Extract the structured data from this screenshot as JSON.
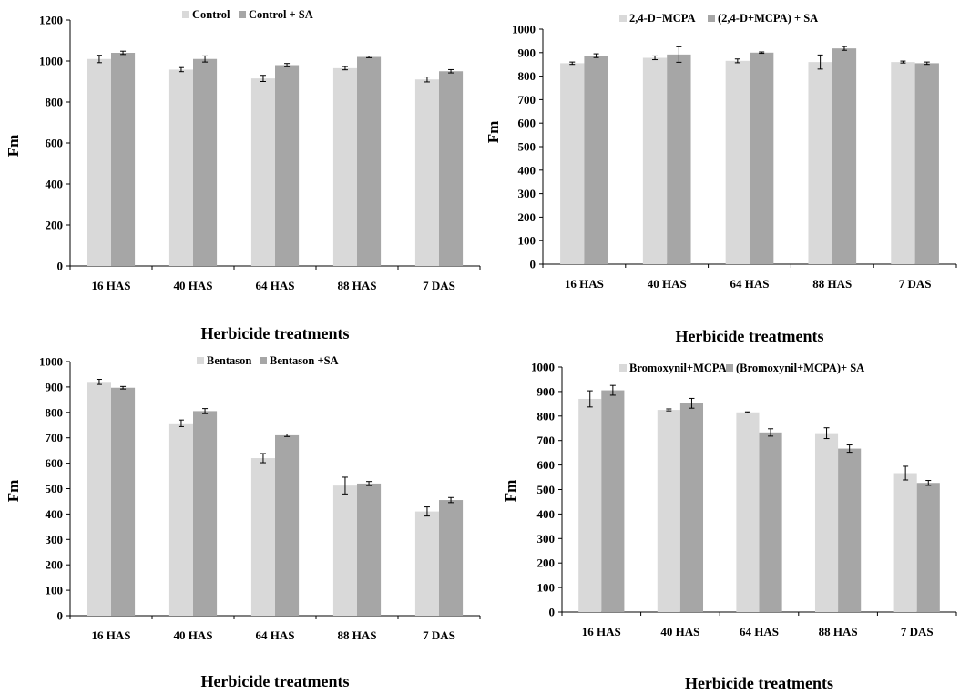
{
  "colors": {
    "series1": "#d9d9d9",
    "series2": "#a6a6a6",
    "axis": "#000000"
  },
  "chart_data": [
    {
      "type": "bar",
      "categories": [
        "16 HAS",
        "40 HAS",
        "64 HAS",
        "88 HAS",
        "7 DAS"
      ],
      "series": [
        {
          "name": "Control",
          "values": [
            1010,
            958,
            915,
            965,
            910
          ],
          "errors": [
            18,
            10,
            15,
            8,
            12
          ]
        },
        {
          "name": "Control + SA",
          "values": [
            1040,
            1010,
            980,
            1020,
            950
          ],
          "errors": [
            8,
            15,
            8,
            4,
            8
          ]
        }
      ],
      "xlabel": "Herbicide treatments",
      "ylabel": "Fm",
      "ylim": [
        0,
        1200
      ],
      "yticks": [
        "0",
        "200",
        "400",
        "600",
        "800",
        "1000",
        "1200"
      ],
      "grid": false,
      "legend": "top"
    },
    {
      "type": "bar",
      "categories": [
        "16 HAS",
        "40 HAS",
        "64 HAS",
        "88 HAS",
        "7 DAS"
      ],
      "series": [
        {
          "name": "2,4-D+MCPA",
          "values": [
            855,
            878,
            865,
            860,
            860
          ],
          "errors": [
            5,
            8,
            8,
            30,
            4
          ]
        },
        {
          "name": "(2,4-D+MCPA)  + SA",
          "values": [
            887,
            892,
            900,
            918,
            855
          ],
          "errors": [
            8,
            33,
            3,
            8,
            5
          ]
        }
      ],
      "xlabel": "Herbicide treatments",
      "ylabel": "Fm",
      "ylim": [
        0,
        1000
      ],
      "yticks": [
        "0",
        "100",
        "200",
        "300",
        "400",
        "500",
        "600",
        "700",
        "800",
        "900",
        "1000"
      ],
      "grid": false,
      "legend": "top"
    },
    {
      "type": "bar",
      "categories": [
        "16 HAS",
        "40 HAS",
        "64 HAS",
        "88 HAS",
        "7 DAS"
      ],
      "series": [
        {
          "name": "Bentason",
          "values": [
            920,
            757,
            620,
            512,
            410
          ],
          "errors": [
            10,
            13,
            18,
            33,
            18
          ]
        },
        {
          "name": "Bentason +SA",
          "values": [
            897,
            805,
            710,
            520,
            455
          ],
          "errors": [
            5,
            10,
            5,
            8,
            10
          ]
        }
      ],
      "xlabel": "Herbicide treatments",
      "ylabel": "Fm",
      "ylim": [
        0,
        1000
      ],
      "yticks": [
        "0",
        "100",
        "200",
        "300",
        "400",
        "500",
        "600",
        "700",
        "800",
        "900",
        "1000"
      ],
      "grid": false,
      "legend": "top"
    },
    {
      "type": "bar",
      "categories": [
        "16 HAS",
        "40 HAS",
        "64 HAS",
        "88 HAS",
        "7 DAS"
      ],
      "series": [
        {
          "name": "Bromoxynil+MCPA",
          "values": [
            870,
            825,
            815,
            730,
            567
          ],
          "errors": [
            33,
            4,
            2,
            22,
            28
          ]
        },
        {
          "name": "(Bromoxynil+MCPA)+ SA",
          "values": [
            905,
            852,
            733,
            667,
            527
          ],
          "errors": [
            20,
            20,
            15,
            15,
            10
          ]
        }
      ],
      "xlabel": "Herbicide treatments",
      "ylabel": "Fm",
      "ylim": [
        0,
        1000
      ],
      "yticks": [
        "0",
        "100",
        "200",
        "300",
        "400",
        "500",
        "600",
        "700",
        "800",
        "900",
        "1000"
      ],
      "grid": false,
      "legend": "top"
    }
  ]
}
